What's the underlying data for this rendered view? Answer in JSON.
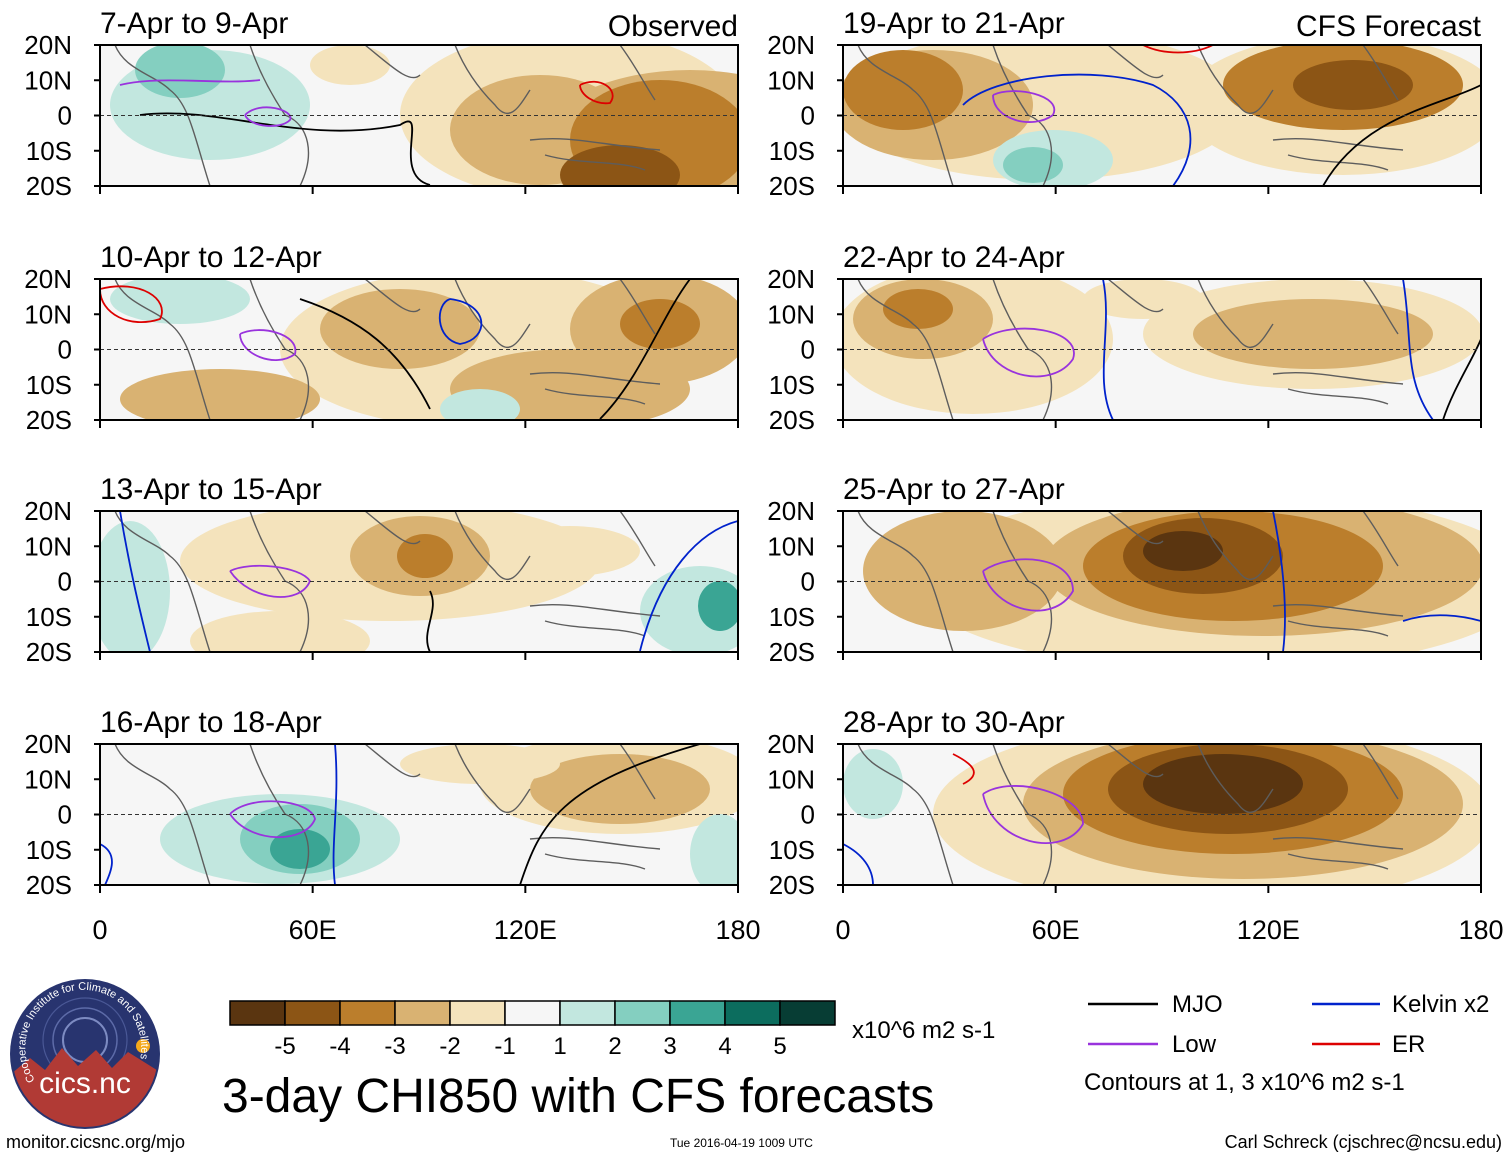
{
  "panels": {
    "observed": [
      {
        "title": "7-Apr to 9-Apr"
      },
      {
        "title": "10-Apr to 12-Apr"
      },
      {
        "title": "13-Apr to 15-Apr"
      },
      {
        "title": "16-Apr to 18-Apr"
      }
    ],
    "forecast": [
      {
        "title": "19-Apr to 21-Apr"
      },
      {
        "title": "22-Apr to 24-Apr"
      },
      {
        "title": "25-Apr to 27-Apr"
      },
      {
        "title": "28-Apr to 30-Apr"
      }
    ]
  },
  "labels": {
    "observed": "Observed",
    "forecast": "CFS Forecast"
  },
  "axes": {
    "lat": [
      "20N",
      "10N",
      "0",
      "10S",
      "20S"
    ],
    "lon": [
      "0",
      "60E",
      "120E",
      "180"
    ]
  },
  "colorbar": {
    "ticks": [
      "-5",
      "-4",
      "-3",
      "-2",
      "-1",
      "1",
      "2",
      "3",
      "4",
      "5"
    ],
    "colors": [
      "#5a3510",
      "#8c5515",
      "#bb7e2c",
      "#d9b272",
      "#f4e3bc",
      "#f6f6f6",
      "#c2e7df",
      "#84cfc0",
      "#3aa594",
      "#0c6d5e",
      "#073d34"
    ],
    "units": "x10^6 m2 s-1"
  },
  "title": "3-day CHI850 with CFS forecasts",
  "legend": {
    "items": [
      {
        "label": "MJO",
        "color": "#000000"
      },
      {
        "label": "Kelvin x2",
        "color": "#0022cc"
      },
      {
        "label": "Low",
        "color": "#9933dd"
      },
      {
        "label": "ER",
        "color": "#dd0000"
      }
    ],
    "contours_note": "Contours at 1, 3 x10^6 m2 s-1"
  },
  "logo": {
    "text": "cics.nc",
    "ring_text": "Cooperative Institute for Climate and Satellites"
  },
  "footer": {
    "url": "monitor.cicsnc.org/mjo",
    "timestamp": "Tue 2016-04-19 1009 UTC",
    "credit": "Carl Schreck (cjschrec@ncsu.edu)"
  }
}
